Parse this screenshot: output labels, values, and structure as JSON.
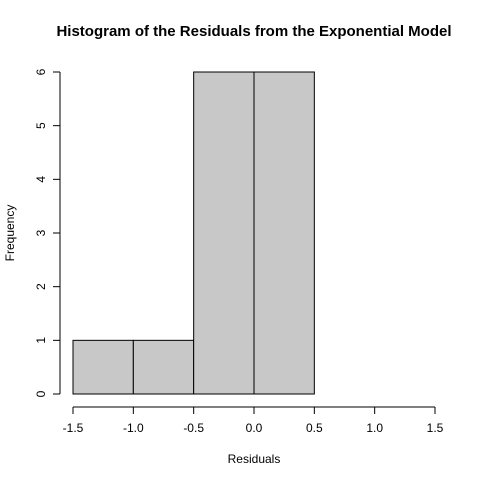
{
  "chart_data": {
    "type": "bar",
    "title": "Histogram of the Residuals from the Exponential Model",
    "xlabel": "Residuals",
    "ylabel": "Frequency",
    "bins": [
      {
        "x0": -1.5,
        "x1": -1.0,
        "count": 1
      },
      {
        "x0": -1.0,
        "x1": -0.5,
        "count": 1
      },
      {
        "x0": -0.5,
        "x1": 0.0,
        "count": 6
      },
      {
        "x0": 0.0,
        "x1": 0.5,
        "count": 6
      }
    ],
    "xlim": [
      -1.5,
      1.5
    ],
    "ylim": [
      0,
      6
    ],
    "x_ticks": [
      "-1.5",
      "-1.0",
      "-0.5",
      "0.0",
      "0.5",
      "1.0",
      "1.5"
    ],
    "y_ticks": [
      "0",
      "1",
      "2",
      "3",
      "4",
      "5",
      "6"
    ],
    "grid": false,
    "bar_color": "#c8c8c8"
  }
}
